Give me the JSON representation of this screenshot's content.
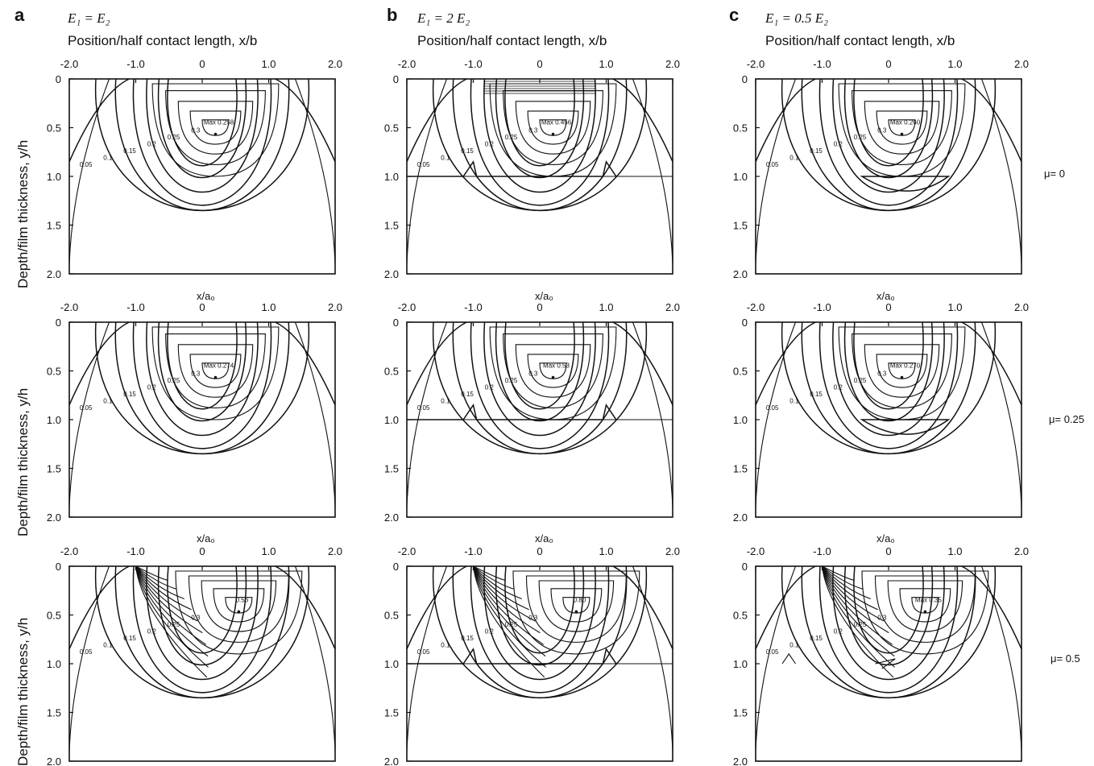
{
  "columns": [
    {
      "letter": "a",
      "condition": "E₁ = E₂",
      "xaxis_title": "Position/half contact length, x/b"
    },
    {
      "letter": "b",
      "condition": "E₁ = 2 E₂",
      "xaxis_title": "Position/half contact length, x/b"
    },
    {
      "letter": "c",
      "condition": "E₁ = 0.5 E₂",
      "xaxis_title": "Position/half contact length, x/b"
    }
  ],
  "rows": [
    {
      "mu_label": "μ= 0"
    },
    {
      "mu_label": "μ= 0.25"
    },
    {
      "mu_label": "μ= 0.5"
    }
  ],
  "ylabel": "Depth/film thickness, y/h",
  "row_xlabel": "x/a₀",
  "x_ticks": [
    "-2.0",
    "-1.0",
    "0",
    "1.0",
    "2.0"
  ],
  "y_ticks": [
    "0",
    "0.5",
    "1.0",
    "1.5",
    "2.0"
  ],
  "max_labels": [
    [
      "Max 0.258",
      "Max 0.456",
      "Max 0.260"
    ],
    [
      "Max 0.274",
      "Max 0.53",
      "Max 0.270"
    ],
    [
      "0.56",
      "0.80",
      "Max 0.35"
    ]
  ],
  "contour_labels": [
    "0.05",
    "0.1",
    "0.15",
    "0.2",
    "0.25",
    "0.3"
  ]
}
